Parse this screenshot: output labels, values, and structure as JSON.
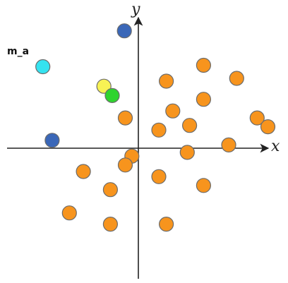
{
  "diagram": {
    "x_axis_label": "x",
    "y_axis_label": "y",
    "callout": {
      "label": "m_a",
      "point_id": "m_a"
    },
    "colors": {
      "axis": "#222222",
      "orange": "#f7941d",
      "blue": "#3a67b8",
      "cyan": "#35e3f0",
      "yellow": "#f7f254",
      "green": "#2ed42e",
      "outline": "#6b6b6b"
    },
    "points": [
      {
        "id": "blue-top",
        "color": "blue",
        "x": -0.3,
        "y": 2.52
      },
      {
        "id": "m_a",
        "color": "cyan",
        "x": -2.05,
        "y": 1.75
      },
      {
        "id": "yellow-1",
        "color": "yellow",
        "x": -0.74,
        "y": 1.33
      },
      {
        "id": "green-1",
        "color": "green",
        "x": -0.56,
        "y": 1.13
      },
      {
        "id": "blue-left",
        "color": "blue",
        "x": -1.85,
        "y": 0.17
      },
      {
        "id": "o1",
        "color": "orange",
        "x": 1.4,
        "y": 1.78
      },
      {
        "id": "o2",
        "color": "orange",
        "x": 2.11,
        "y": 1.5
      },
      {
        "id": "o3",
        "color": "orange",
        "x": 0.6,
        "y": 1.44
      },
      {
        "id": "o4",
        "color": "orange",
        "x": 1.4,
        "y": 1.05
      },
      {
        "id": "o5",
        "color": "orange",
        "x": 0.74,
        "y": 0.8
      },
      {
        "id": "o6",
        "color": "orange",
        "x": -0.28,
        "y": 0.65
      },
      {
        "id": "o7",
        "color": "orange",
        "x": 2.55,
        "y": 0.65
      },
      {
        "id": "o8",
        "color": "orange",
        "x": 1.1,
        "y": 0.49
      },
      {
        "id": "o9",
        "color": "orange",
        "x": 0.44,
        "y": 0.39
      },
      {
        "id": "o10",
        "color": "orange",
        "x": 2.78,
        "y": 0.46
      },
      {
        "id": "o11",
        "color": "orange",
        "x": 1.94,
        "y": 0.07
      },
      {
        "id": "o12",
        "color": "orange",
        "x": 1.05,
        "y": -0.09
      },
      {
        "id": "o13",
        "color": "orange",
        "x": -0.14,
        "y": -0.17
      },
      {
        "id": "o14",
        "color": "orange",
        "x": -0.28,
        "y": -0.36
      },
      {
        "id": "o15",
        "color": "orange",
        "x": -1.18,
        "y": -0.5
      },
      {
        "id": "o16",
        "color": "orange",
        "x": 0.44,
        "y": -0.61
      },
      {
        "id": "o17",
        "color": "orange",
        "x": 1.4,
        "y": -0.8
      },
      {
        "id": "o18",
        "color": "orange",
        "x": -0.6,
        "y": -0.89
      },
      {
        "id": "o19",
        "color": "orange",
        "x": -1.48,
        "y": -1.39
      },
      {
        "id": "o20",
        "color": "orange",
        "x": -0.6,
        "y": -1.63
      },
      {
        "id": "o21",
        "color": "orange",
        "x": 0.6,
        "y": -1.63
      }
    ]
  }
}
